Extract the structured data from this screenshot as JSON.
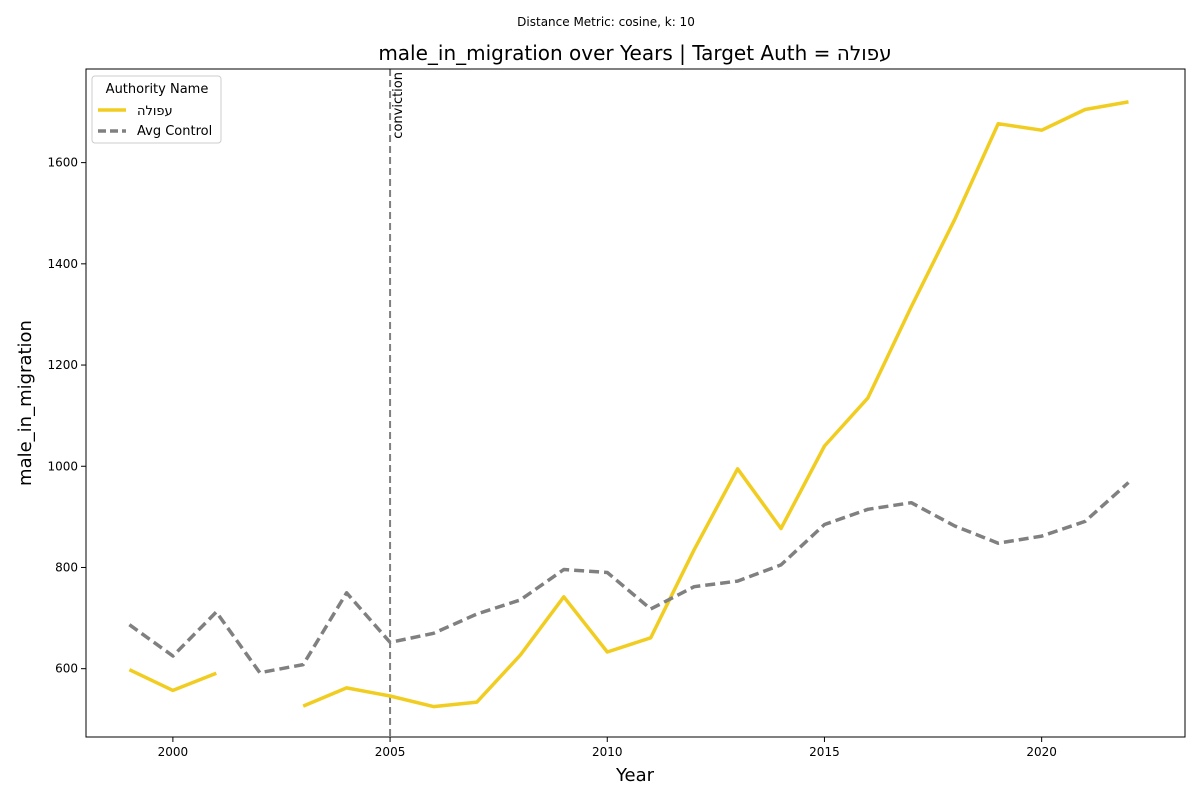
{
  "chart_data": {
    "type": "line",
    "suptitle": "Distance Metric: cosine, k: 10",
    "title": "male_in_migration over Years | Target Auth = עפולה",
    "xlabel": "Year",
    "ylabel": "male_in_migration",
    "xlim": [
      1998,
      2023.3
    ],
    "ylim": [
      465,
      1785
    ],
    "xticks": [
      2000,
      2005,
      2010,
      2015,
      2020
    ],
    "yticks": [
      600,
      800,
      1000,
      1200,
      1400,
      1600
    ],
    "grid": false,
    "legend": {
      "title": "Authority Name",
      "placement": "top-left"
    },
    "series": [
      {
        "name": "עפולה",
        "color": "#f1cd21",
        "style": "solid",
        "points": [
          [
            1999,
            598
          ],
          [
            2000,
            557
          ],
          [
            2001,
            591
          ],
          [
            2002,
            null
          ],
          [
            2003,
            526
          ],
          [
            2004,
            562
          ],
          [
            2005,
            546
          ],
          [
            2006,
            525
          ],
          [
            2007,
            534
          ],
          [
            2008,
            627
          ],
          [
            2009,
            742
          ],
          [
            2010,
            633
          ],
          [
            2011,
            661
          ],
          [
            2012,
            835
          ],
          [
            2013,
            995
          ],
          [
            2014,
            877
          ],
          [
            2015,
            1040
          ],
          [
            2016,
            1135
          ],
          [
            2017,
            1315
          ],
          [
            2018,
            1488
          ],
          [
            2019,
            1677
          ],
          [
            2020,
            1664
          ],
          [
            2021,
            1705
          ],
          [
            2022,
            1720
          ]
        ]
      },
      {
        "name": "Avg Control",
        "color": "#808080",
        "style": "dashed",
        "points": [
          [
            1999,
            687
          ],
          [
            2000,
            625
          ],
          [
            2001,
            712
          ],
          [
            2002,
            592
          ],
          [
            2003,
            608
          ],
          [
            2004,
            750
          ],
          [
            2005,
            652
          ],
          [
            2006,
            670
          ],
          [
            2007,
            708
          ],
          [
            2008,
            736
          ],
          [
            2009,
            796
          ],
          [
            2010,
            790
          ],
          [
            2011,
            718
          ],
          [
            2012,
            762
          ],
          [
            2013,
            773
          ],
          [
            2014,
            805
          ],
          [
            2015,
            885
          ],
          [
            2016,
            915
          ],
          [
            2017,
            928
          ],
          [
            2018,
            882
          ],
          [
            2019,
            848
          ],
          [
            2020,
            862
          ],
          [
            2021,
            891
          ],
          [
            2022,
            968
          ]
        ]
      }
    ],
    "annotations": [
      {
        "type": "vline",
        "x": 2005,
        "label": "conviction",
        "color": "#808080"
      }
    ]
  }
}
